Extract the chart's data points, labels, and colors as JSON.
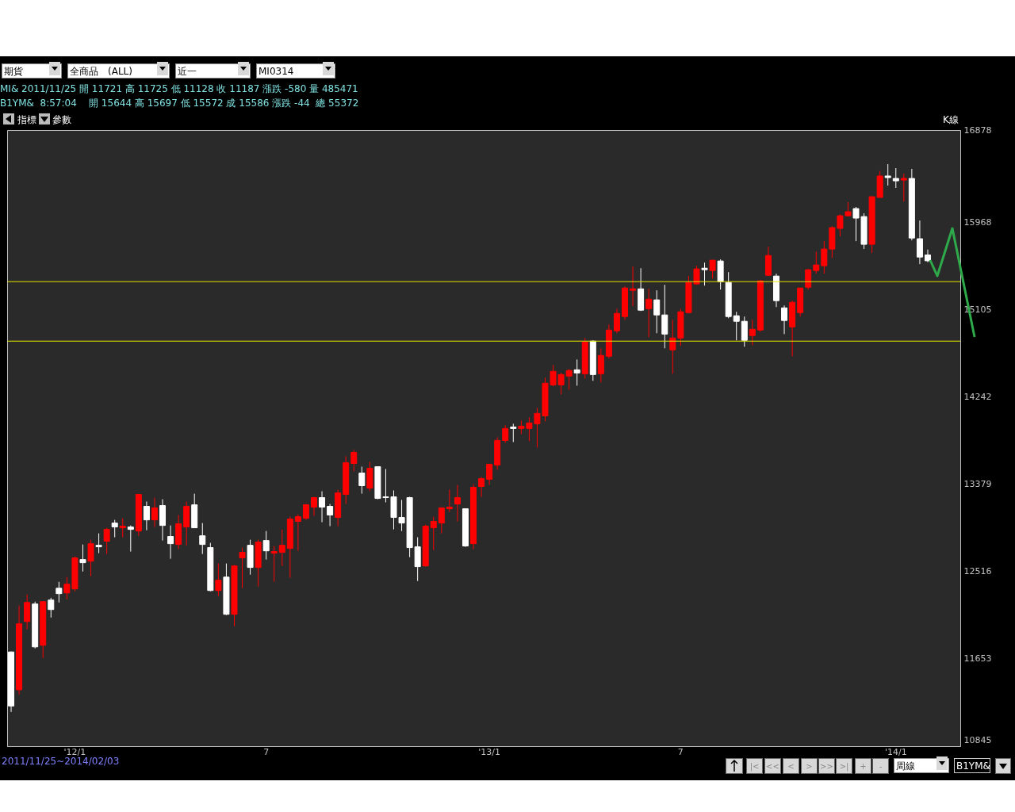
{
  "chart_data": {
    "type": "candlestick",
    "categories": [
      null,
      null,
      null,
      null,
      null,
      null,
      null,
      null,
      "'12/1",
      null,
      null,
      null,
      null,
      null,
      null,
      null,
      null,
      null,
      null,
      null,
      null,
      null,
      null,
      null,
      null,
      null,
      null,
      null,
      null,
      null,
      null,
      null,
      "7",
      null,
      null,
      null,
      null,
      null,
      null,
      null,
      null,
      null,
      null,
      null,
      null,
      null,
      null,
      null,
      null,
      null,
      null,
      null,
      null,
      null,
      null,
      null,
      null,
      null,
      null,
      null,
      "'13/1",
      null,
      null,
      null,
      null,
      null,
      null,
      null,
      null,
      null,
      null,
      null,
      null,
      null,
      null,
      null,
      null,
      null,
      null,
      null,
      null,
      null,
      null,
      null,
      "7",
      null,
      null,
      null,
      null,
      null,
      null,
      null,
      null,
      null,
      null,
      null,
      null,
      null,
      null,
      null,
      null,
      null,
      null,
      null,
      null,
      null,
      null,
      null,
      null,
      null,
      null,
      "'14/1",
      null,
      null,
      null,
      null
    ],
    "ohlc": [
      [
        11721,
        11725,
        11128,
        11187
      ],
      [
        11347,
        12179,
        11300,
        11999
      ],
      [
        12022,
        12289,
        11944,
        12210
      ],
      [
        12195,
        12218,
        11756,
        11771
      ],
      [
        11787,
        12218,
        11661,
        12218
      ],
      [
        12234,
        12257,
        12061,
        12140
      ],
      [
        12351,
        12414,
        12210,
        12297
      ],
      [
        12304,
        12461,
        12242,
        12391
      ],
      [
        12344,
        12665,
        12320,
        12650
      ],
      [
        12634,
        12783,
        12516,
        12603
      ],
      [
        12618,
        12830,
        12469,
        12791
      ],
      [
        12775,
        12893,
        12697,
        12760
      ],
      [
        12815,
        12948,
        12689,
        12932
      ],
      [
        12995,
        13026,
        12854,
        12956
      ],
      [
        12948,
        13042,
        12854,
        12964
      ],
      [
        12956,
        12971,
        12713,
        12932
      ],
      [
        12916,
        13278,
        12869,
        13278
      ],
      [
        13160,
        13207,
        12924,
        13026
      ],
      [
        13026,
        13246,
        12956,
        13144
      ],
      [
        13168,
        13230,
        12822,
        12971
      ],
      [
        12862,
        12971,
        12642,
        12791
      ],
      [
        12783,
        13074,
        12736,
        12987
      ],
      [
        12956,
        13207,
        12775,
        13160
      ],
      [
        13175,
        13285,
        12948,
        12948
      ],
      [
        12869,
        12995,
        12689,
        12783
      ],
      [
        12752,
        12799,
        12320,
        12328
      ],
      [
        12328,
        12595,
        12273,
        12430
      ],
      [
        12461,
        12595,
        12085,
        12093
      ],
      [
        12093,
        12579,
        11975,
        12571
      ],
      [
        12650,
        12752,
        12352,
        12705
      ],
      [
        12775,
        12830,
        12485,
        12556
      ],
      [
        12556,
        12830,
        12368,
        12807
      ],
      [
        12822,
        12916,
        12634,
        12720
      ],
      [
        12697,
        12768,
        12414,
        12713
      ],
      [
        12705,
        12932,
        12571,
        12775
      ],
      [
        12744,
        13058,
        12454,
        13034
      ],
      [
        13011,
        13081,
        12720,
        13058
      ],
      [
        13042,
        13183,
        13026,
        13175
      ],
      [
        13152,
        13254,
        13066,
        13246
      ],
      [
        13246,
        13309,
        13003,
        13152
      ],
      [
        13160,
        13183,
        12964,
        13074
      ],
      [
        13050,
        13325,
        12964,
        13293
      ],
      [
        13278,
        13654,
        13183,
        13591
      ],
      [
        13583,
        13717,
        13505,
        13693
      ],
      [
        13489,
        13552,
        13285,
        13364
      ],
      [
        13340,
        13599,
        13309,
        13536
      ],
      [
        13552,
        13552,
        13230,
        13238
      ],
      [
        13254,
        13529,
        13199,
        13246
      ],
      [
        13254,
        13317,
        12932,
        13050
      ],
      [
        13050,
        13223,
        12916,
        12995
      ],
      [
        13246,
        13254,
        12658,
        12752
      ],
      [
        12760,
        12854,
        12422,
        12564
      ],
      [
        12571,
        12979,
        12564,
        12964
      ],
      [
        12948,
        13058,
        12728,
        13011
      ],
      [
        12995,
        13152,
        12893,
        13144
      ],
      [
        13136,
        13325,
        13105,
        13152
      ],
      [
        13183,
        13372,
        13011,
        13246
      ],
      [
        13136,
        13136,
        12760,
        12768
      ],
      [
        12791,
        13380,
        12736,
        13348
      ],
      [
        13356,
        13450,
        13254,
        13434
      ],
      [
        13427,
        13576,
        13372,
        13576
      ],
      [
        13568,
        13842,
        13521,
        13811
      ],
      [
        13811,
        13960,
        13788,
        13929
      ],
      [
        13944,
        13976,
        13795,
        13929
      ],
      [
        13929,
        14007,
        13874,
        13952
      ],
      [
        13929,
        14039,
        13803,
        13984
      ],
      [
        13976,
        14133,
        13740,
        14078
      ],
      [
        14054,
        14431,
        13999,
        14376
      ],
      [
        14360,
        14556,
        14345,
        14494
      ],
      [
        14360,
        14478,
        14266,
        14462
      ],
      [
        14447,
        14517,
        14313,
        14502
      ],
      [
        14509,
        14611,
        14352,
        14478
      ],
      [
        14470,
        14823,
        14423,
        14784
      ],
      [
        14792,
        14800,
        14400,
        14462
      ],
      [
        14470,
        14721,
        14384,
        14651
      ],
      [
        14643,
        14956,
        14619,
        14902
      ],
      [
        14894,
        15113,
        14870,
        15066
      ],
      [
        15035,
        15333,
        15003,
        15317
      ],
      [
        15294,
        15529,
        15137,
        15309
      ],
      [
        15309,
        15513,
        15090,
        15098
      ],
      [
        15113,
        15309,
        14831,
        15207
      ],
      [
        15200,
        15294,
        14870,
        15051
      ],
      [
        15051,
        15349,
        14721,
        14862
      ],
      [
        14706,
        15003,
        14470,
        14823
      ],
      [
        14823,
        15113,
        14745,
        15082
      ],
      [
        15074,
        15435,
        15066,
        15372
      ],
      [
        15357,
        15537,
        15349,
        15506
      ],
      [
        15513,
        15568,
        15341,
        15498
      ],
      [
        15490,
        15592,
        15411,
        15592
      ],
      [
        15584,
        15600,
        15302,
        15380
      ],
      [
        15372,
        15474,
        15019,
        15035
      ],
      [
        15043,
        15082,
        14800,
        14988
      ],
      [
        14988,
        15035,
        14737,
        14800
      ],
      [
        14847,
        15003,
        14752,
        14909
      ],
      [
        14902,
        15396,
        14886,
        15388
      ],
      [
        15443,
        15725,
        15435,
        15639
      ],
      [
        15435,
        15459,
        15129,
        15192
      ],
      [
        15121,
        15145,
        14862,
        14996
      ],
      [
        14933,
        15192,
        14643,
        15176
      ],
      [
        15074,
        15317,
        15035,
        15317
      ],
      [
        15325,
        15506,
        15302,
        15498
      ],
      [
        15490,
        15678,
        15459,
        15545
      ],
      [
        15537,
        15780,
        15459,
        15702
      ],
      [
        15702,
        15929,
        15615,
        15914
      ],
      [
        15906,
        16047,
        15827,
        16031
      ],
      [
        16031,
        16165,
        16023,
        16071
      ],
      [
        16102,
        16118,
        15780,
        16008
      ],
      [
        16023,
        16055,
        15702,
        15749
      ],
      [
        15749,
        16220,
        15663,
        16220
      ],
      [
        16212,
        16473,
        16212,
        16424
      ],
      [
        16424,
        16541,
        16329,
        16408
      ],
      [
        16400,
        16502,
        16306,
        16376
      ],
      [
        16384,
        16447,
        16172,
        16400
      ],
      [
        16400,
        16494,
        15788,
        15811
      ],
      [
        15804,
        15984,
        15553,
        15623
      ],
      [
        15644,
        15697,
        15572,
        15586
      ]
    ],
    "colors": [
      "#ffffff",
      "#ff0000",
      "#ff0000",
      "#ffffff",
      "#ff0000",
      "#ffffff",
      "#ffffff",
      "#ff0000",
      "#ff0000",
      "#ffffff",
      "#ff0000",
      "#ffffff",
      "#ff0000",
      "#ffffff",
      "#ff0000",
      "#ffffff",
      "#ff0000",
      "#ffffff",
      "#ff0000",
      "#ffffff",
      "#ffffff",
      "#ff0000",
      "#ff0000",
      "#ffffff",
      "#ffffff",
      "#ffffff",
      "#ff0000",
      "#ffffff",
      "#ff0000",
      "#ff0000",
      "#ffffff",
      "#ff0000",
      "#ffffff",
      "#ff0000",
      "#ff0000",
      "#ff0000",
      "#ff0000",
      "#ff0000",
      "#ff0000",
      "#ffffff",
      "#ffffff",
      "#ff0000",
      "#ff0000",
      "#ff0000",
      "#ffffff",
      "#ff0000",
      "#ffffff",
      "#ffffff",
      "#ffffff",
      "#ffffff",
      "#ffffff",
      "#ffffff",
      "#ff0000",
      "#ff0000",
      "#ff0000",
      "#ff0000",
      "#ff0000",
      "#ffffff",
      "#ff0000",
      "#ff0000",
      "#ff0000",
      "#ff0000",
      "#ff0000",
      "#ffffff",
      "#ff0000",
      "#ff0000",
      "#ff0000",
      "#ff0000",
      "#ff0000",
      "#ff0000",
      "#ff0000",
      "#ffffff",
      "#ff0000",
      "#ffffff",
      "#ff0000",
      "#ff0000",
      "#ff0000",
      "#ff0000",
      "#ff0000",
      "#ffffff",
      "#ff0000",
      "#ffffff",
      "#ffffff",
      "#ff0000",
      "#ff0000",
      "#ff0000",
      "#ff0000",
      "#ffffff",
      "#ff0000",
      "#ffffff",
      "#ffffff",
      "#ffffff",
      "#ffffff",
      "#ff0000",
      "#ff0000",
      "#ff0000",
      "#ffffff",
      "#ffffff",
      "#ff0000",
      "#ff0000",
      "#ff0000",
      "#ff0000",
      "#ff0000",
      "#ff0000",
      "#ff0000",
      "#ff0000",
      "#ffffff",
      "#ffffff",
      "#ff0000",
      "#ff0000",
      "#ffffff",
      "#ffffff",
      "#ff0000",
      "#ffffff",
      "#ffffff",
      "#ffffff"
    ],
    "ylim": [
      10790,
      16878
    ],
    "yticks": [
      10845,
      11653,
      12516,
      13379,
      14242,
      15105,
      15968,
      16878
    ],
    "ref_lines": [
      {
        "axis": "y",
        "value": 15380,
        "label": null,
        "color": "#e6e600"
      },
      {
        "axis": "y",
        "value": 14792,
        "label": null,
        "color": "#e6e600"
      }
    ],
    "annotations": [
      "期貨",
      "全商品　(ALL)",
      "近一",
      "MI0314",
      "MI& 2011/11/25 開 11721 高 11725 低 11128 收 11187 漲跌 -580 量 485471",
      "B1YM&  8:57:04    開 15644 高 15697 低 15572 成 15586 漲跌 -44  總 55372",
      "指標",
      "參數",
      "K線",
      "2011/11/25~2014/02/03",
      "周線",
      "B1YM&",
      "|<",
      "<<",
      "<",
      ">",
      ">>",
      ">|",
      "+",
      "-"
    ]
  }
}
